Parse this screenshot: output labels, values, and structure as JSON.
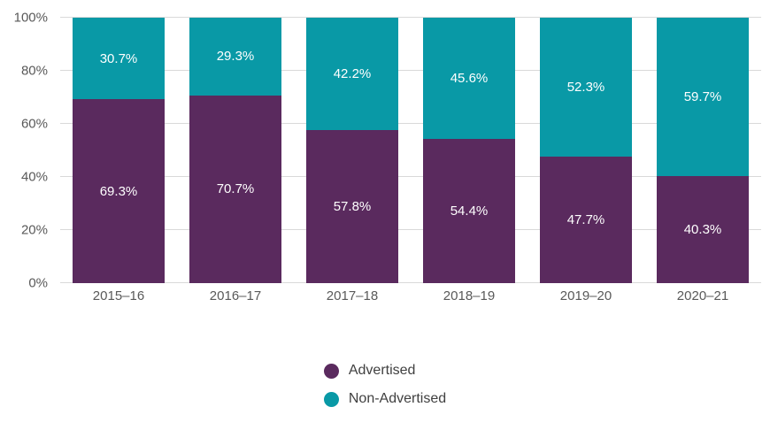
{
  "chart_data": {
    "type": "bar",
    "subtype": "stacked-100-percent",
    "title": "",
    "xlabel": "",
    "ylabel": "",
    "categories": [
      "2015–16",
      "2016–17",
      "2017–18",
      "2018–19",
      "2019–20",
      "2020–21"
    ],
    "series": [
      {
        "name": "Advertised",
        "color": "#5A2A5E",
        "values": [
          69.3,
          70.7,
          57.8,
          54.4,
          47.7,
          40.3
        ]
      },
      {
        "name": "Non-Advertised",
        "color": "#0999A6",
        "values": [
          30.7,
          29.3,
          42.2,
          45.6,
          52.3,
          59.7
        ]
      }
    ],
    "value_label_suffix": "%",
    "ylim": [
      0,
      100
    ],
    "yticks": [
      {
        "label": "0%",
        "value": 0
      },
      {
        "label": "20%",
        "value": 20
      },
      {
        "label": "40%",
        "value": 40
      },
      {
        "label": "60%",
        "value": 60
      },
      {
        "label": "80%",
        "value": 80
      },
      {
        "label": "100%",
        "value": 100
      }
    ],
    "grid": true,
    "legend_position": "bottom",
    "colors": {
      "grid": "#D9D9D9",
      "tick_text": "#595959",
      "value_label_text": "#FFFFFF",
      "legend_text": "#404040"
    }
  }
}
